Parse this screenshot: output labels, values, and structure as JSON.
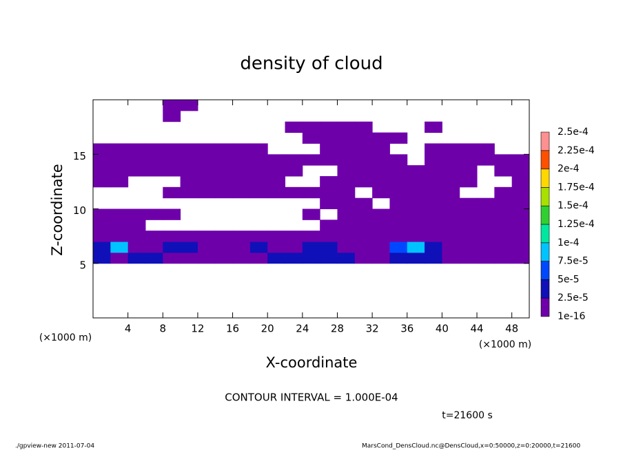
{
  "chart_data": {
    "type": "contour",
    "title": "density of cloud",
    "x_label": "X-coordinate",
    "y_label": "Z-coordinate",
    "axis_unit": "(×1000 m)",
    "contour_interval": "CONTOUR INTERVAL = 1.000E-04",
    "time_label": "t=21600 s",
    "footer_left": "./gpview-new  2011-07-04",
    "footer_right": "MarsCond_DensCloud.nc@DensCloud,x=0:50000,z=0:20000,t=21600",
    "xlim": [
      0,
      50
    ],
    "ylim": [
      0,
      20
    ],
    "xticks": [
      4,
      8,
      12,
      16,
      20,
      24,
      28,
      32,
      36,
      40,
      44,
      48
    ],
    "yticks": [
      5,
      10,
      15
    ],
    "x": [
      1,
      3,
      5,
      7,
      9,
      11,
      13,
      15,
      17,
      19,
      21,
      23,
      25,
      27,
      29,
      31,
      33,
      35,
      37,
      39,
      41,
      43,
      45,
      47,
      49
    ],
    "z": [
      5.5,
      6.5,
      7.5,
      8.5,
      9.5,
      10.5,
      11.5,
      12.5,
      13.5,
      14.5,
      15.5,
      16.5,
      17.5,
      18.5,
      19.5
    ],
    "values": [
      [
        3e-05,
        1e-06,
        3e-05,
        3e-05,
        1e-06,
        1e-06,
        1e-06,
        1e-06,
        1e-06,
        1e-06,
        3e-05,
        3e-05,
        3e-05,
        3e-05,
        3e-05,
        1e-06,
        1e-06,
        3e-05,
        3e-05,
        3e-05,
        1e-06,
        1e-06,
        1e-06,
        1e-06,
        1e-06
      ],
      [
        3e-05,
        8e-05,
        1e-06,
        1e-06,
        3e-05,
        3e-05,
        1e-06,
        1e-06,
        1e-06,
        3e-05,
        1e-06,
        1e-06,
        3e-05,
        3e-05,
        1e-06,
        1e-06,
        1e-06,
        6e-05,
        8e-05,
        3e-05,
        1e-06,
        1e-06,
        1e-06,
        1e-06,
        1e-06
      ],
      [
        1e-06,
        1e-06,
        1e-06,
        1e-06,
        1e-06,
        1e-06,
        1e-06,
        1e-06,
        1e-06,
        1e-06,
        1e-06,
        1e-06,
        1e-06,
        1e-06,
        1e-06,
        1e-06,
        1e-06,
        1e-06,
        1e-06,
        1e-06,
        1e-06,
        1e-06,
        1e-06,
        1e-06,
        1e-06
      ],
      [
        1e-06,
        1e-06,
        1e-06,
        null,
        null,
        null,
        null,
        null,
        null,
        null,
        null,
        null,
        null,
        1e-06,
        1e-06,
        1e-06,
        1e-06,
        1e-06,
        1e-06,
        1e-06,
        1e-06,
        1e-06,
        1e-06,
        1e-06,
        1e-06
      ],
      [
        1e-06,
        1e-06,
        1e-06,
        1e-06,
        1e-06,
        null,
        null,
        null,
        null,
        null,
        null,
        null,
        1e-06,
        null,
        1e-06,
        1e-06,
        1e-06,
        1e-06,
        1e-06,
        1e-06,
        1e-06,
        1e-06,
        1e-06,
        1e-06,
        1e-06
      ],
      [
        null,
        null,
        null,
        null,
        null,
        null,
        null,
        null,
        null,
        null,
        null,
        null,
        null,
        1e-06,
        1e-06,
        1e-06,
        null,
        1e-06,
        1e-06,
        1e-06,
        1e-06,
        1e-06,
        1e-06,
        1e-06,
        1e-06
      ],
      [
        null,
        null,
        null,
        null,
        1e-06,
        1e-06,
        1e-06,
        1e-06,
        1e-06,
        1e-06,
        1e-06,
        1e-06,
        1e-06,
        1e-06,
        1e-06,
        null,
        1e-06,
        1e-06,
        1e-06,
        1e-06,
        1e-06,
        null,
        null,
        1e-06,
        1e-06
      ],
      [
        1e-06,
        1e-06,
        null,
        null,
        null,
        1e-06,
        1e-06,
        1e-06,
        1e-06,
        1e-06,
        1e-06,
        null,
        null,
        1e-06,
        1e-06,
        1e-06,
        1e-06,
        1e-06,
        1e-06,
        1e-06,
        1e-06,
        1e-06,
        null,
        null,
        1e-06
      ],
      [
        1e-06,
        1e-06,
        1e-06,
        1e-06,
        1e-06,
        1e-06,
        1e-06,
        1e-06,
        1e-06,
        1e-06,
        1e-06,
        1e-06,
        null,
        null,
        1e-06,
        1e-06,
        1e-06,
        1e-06,
        1e-06,
        1e-06,
        1e-06,
        1e-06,
        null,
        1e-06,
        1e-06
      ],
      [
        1e-06,
        1e-06,
        1e-06,
        1e-06,
        1e-06,
        1e-06,
        1e-06,
        1e-06,
        1e-06,
        1e-06,
        1e-06,
        1e-06,
        1e-06,
        1e-06,
        1e-06,
        1e-06,
        1e-06,
        1e-06,
        null,
        1e-06,
        1e-06,
        1e-06,
        1e-06,
        1e-06,
        1e-06
      ],
      [
        1e-06,
        1e-06,
        1e-06,
        1e-06,
        1e-06,
        1e-06,
        1e-06,
        1e-06,
        1e-06,
        1e-06,
        null,
        null,
        null,
        1e-06,
        1e-06,
        1e-06,
        1e-06,
        null,
        null,
        1e-06,
        1e-06,
        1e-06,
        1e-06,
        null,
        null
      ],
      [
        null,
        null,
        null,
        null,
        null,
        null,
        null,
        null,
        null,
        null,
        null,
        null,
        1e-06,
        1e-06,
        1e-06,
        1e-06,
        1e-06,
        1e-06,
        null,
        null,
        null,
        null,
        null,
        null,
        null
      ],
      [
        null,
        null,
        null,
        null,
        null,
        null,
        null,
        null,
        null,
        null,
        null,
        1e-06,
        1e-06,
        1e-06,
        1e-06,
        1e-06,
        null,
        null,
        null,
        1e-06,
        null,
        null,
        null,
        null,
        null
      ],
      [
        null,
        null,
        null,
        null,
        1e-06,
        null,
        null,
        null,
        null,
        null,
        null,
        null,
        null,
        null,
        null,
        null,
        null,
        null,
        null,
        null,
        null,
        null,
        null,
        null,
        null
      ],
      [
        null,
        null,
        null,
        null,
        1e-06,
        1e-06,
        null,
        null,
        null,
        null,
        null,
        null,
        null,
        null,
        null,
        null,
        null,
        null,
        null,
        null,
        null,
        null,
        null,
        null,
        null
      ]
    ],
    "colorbar_levels": [
      1e-16,
      {
        "value": 2.5e-05,
        "label": "2.5e-5"
      },
      {
        "value": 5e-05,
        "label": "5e-5"
      },
      {
        "value": 7.5e-05,
        "label": "7.5e-5"
      },
      {
        "value": 0.0001,
        "label": "1e-4"
      },
      {
        "value": 0.000125,
        "label": "1.25e-4"
      },
      {
        "value": 0.00015,
        "label": "1.5e-4"
      },
      {
        "value": 0.000175,
        "label": "1.75e-4"
      },
      {
        "value": 0.0002,
        "label": "2e-4"
      },
      {
        "value": 0.000225,
        "label": "2.25e-4"
      },
      {
        "value": 0.00025,
        "label": "2.5e-4"
      }
    ],
    "colorbar_colors": [
      "#6e00aa",
      "#1010b8",
      "#0048ff",
      "#00c4ff",
      "#00e8a0",
      "#30d030",
      "#a8e000",
      "#ffd800",
      "#ff5000",
      "#ff9090"
    ]
  }
}
